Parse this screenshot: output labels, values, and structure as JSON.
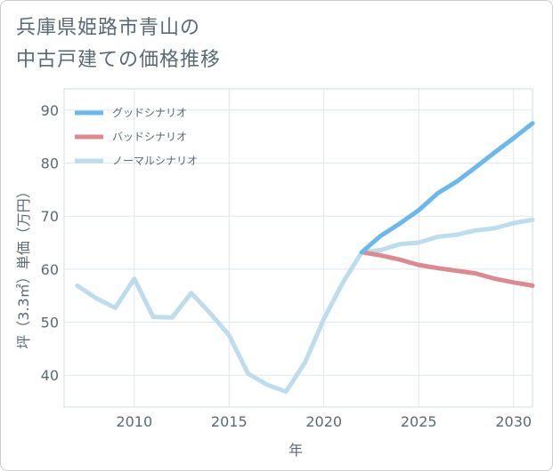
{
  "title_line1": "兵庫県姫路市青山の",
  "title_line2": "中古戸建ての価格推移",
  "chart_data": {
    "type": "line",
    "title": "兵庫県姫路市青山の中古戸建ての価格推移",
    "xlabel": "年",
    "ylabel": "坪（3.3㎡）単価（万円）",
    "xlim": [
      2006.3,
      2031
    ],
    "ylim": [
      34,
      94
    ],
    "xticks": [
      2010,
      2015,
      2020,
      2025,
      2030
    ],
    "yticks": [
      40,
      50,
      60,
      70,
      80,
      90
    ],
    "grid": true,
    "legend_position": "top-left",
    "series": [
      {
        "name": "グッドシナリオ",
        "color": "#6cb8ec",
        "x": [
          2022,
          2023,
          2024,
          2025,
          2026,
          2027,
          2028,
          2029,
          2030,
          2031
        ],
        "values": [
          63.2,
          66.3,
          68.6,
          71.1,
          74.3,
          76.5,
          79.2,
          82.0,
          84.7,
          87.5
        ]
      },
      {
        "name": "バッドシナリオ",
        "color": "#dc8a92",
        "x": [
          2022,
          2023,
          2024,
          2025,
          2026,
          2027,
          2028,
          2029,
          2030,
          2031
        ],
        "values": [
          63.2,
          62.6,
          61.8,
          60.8,
          60.2,
          59.7,
          59.2,
          58.2,
          57.5,
          56.9
        ]
      },
      {
        "name": "ノーマルシナリオ",
        "color": "#bddcec",
        "x": [
          2007,
          2008,
          2009,
          2010,
          2011,
          2012,
          2013,
          2014,
          2015,
          2016,
          2017,
          2018,
          2019,
          2020,
          2021,
          2022,
          2023,
          2024,
          2025,
          2026,
          2027,
          2028,
          2029,
          2030,
          2031
        ],
        "values": [
          56.9,
          54.5,
          52.7,
          58.2,
          51.0,
          50.9,
          55.5,
          51.7,
          47.5,
          40.3,
          38.2,
          36.9,
          42.4,
          50.6,
          57.5,
          63.2,
          63.6,
          64.7,
          65.0,
          66.1,
          66.5,
          67.3,
          67.7,
          68.7,
          69.3
        ]
      }
    ]
  }
}
